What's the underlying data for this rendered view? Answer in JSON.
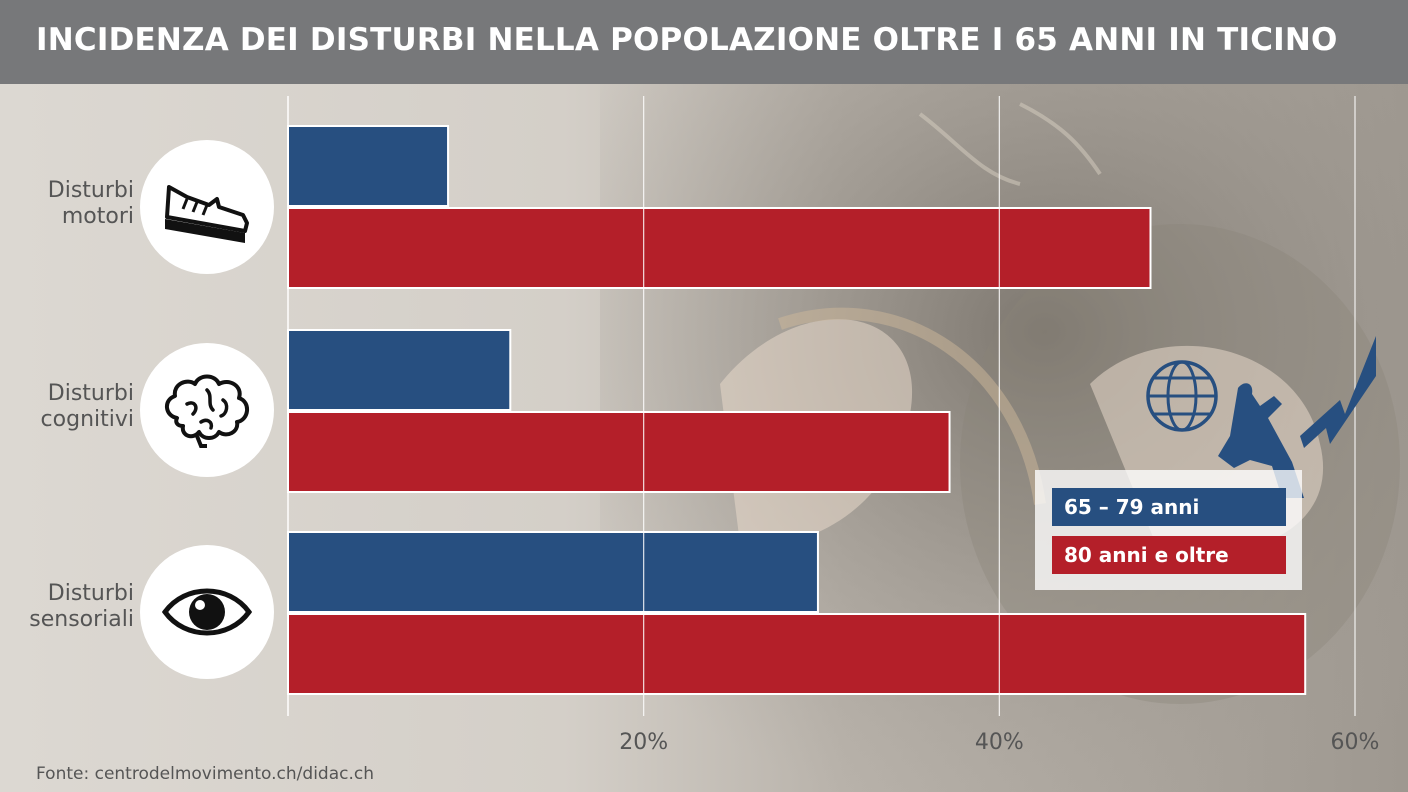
{
  "title": "INCIDENZA DEI DISTURBI NELLA POPOLAZIONE OLTRE I 65 ANNI IN TICINO",
  "source": "Fonte: centrodelmovimento.ch/didac.ch",
  "colors": {
    "series1": "#274f80",
    "series2": "#b41f29",
    "titlebar": "#77787a"
  },
  "categories": [
    {
      "line1": "Disturbi",
      "line2": "motori",
      "icon": "shoe-icon"
    },
    {
      "line1": "Disturbi",
      "line2": "cognitivi",
      "icon": "brain-icon"
    },
    {
      "line1": "Disturbi",
      "line2": "sensoriali",
      "icon": "eye-icon"
    }
  ],
  "legend": [
    "65 – 79 anni",
    "80 anni e oltre"
  ],
  "chart_data": {
    "type": "bar",
    "orientation": "horizontal",
    "title": "INCIDENZA DEI DISTURBI NELLA POPOLAZIONE OLTRE I 65 ANNI IN TICINO",
    "categories": [
      "Disturbi motori",
      "Disturbi cognitivi",
      "Disturbi sensoriali"
    ],
    "series": [
      {
        "name": "65 – 79 anni",
        "values": [
          9,
          12.5,
          29.8
        ],
        "color": "#274f80"
      },
      {
        "name": "80 anni e oltre",
        "values": [
          48.5,
          37.2,
          57.2
        ],
        "color": "#b41f29"
      }
    ],
    "xlim": [
      0,
      60
    ],
    "xticks": [
      20,
      40,
      60
    ],
    "xtick_labels": [
      "20%",
      "40%",
      "60%"
    ],
    "grid": true,
    "legend_position": "lower-right"
  }
}
